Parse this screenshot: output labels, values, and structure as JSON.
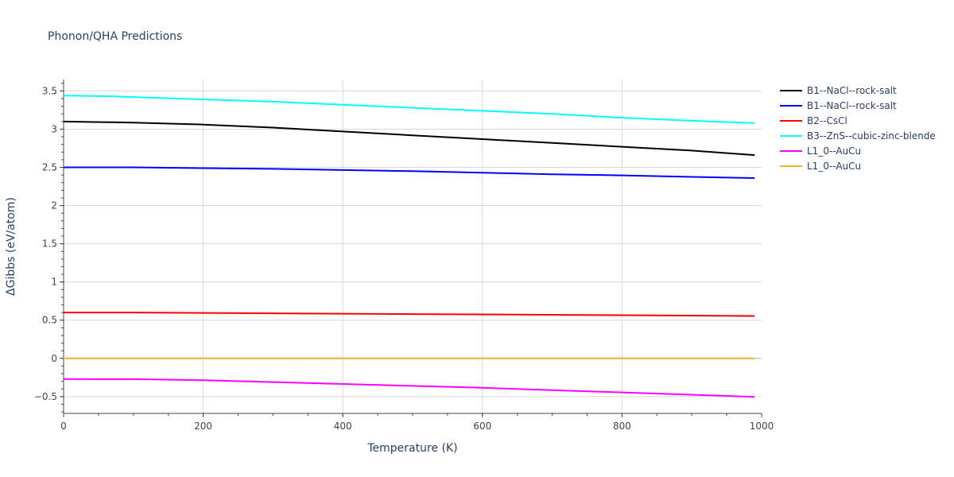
{
  "chart_data": {
    "type": "line",
    "title": "Phonon/QHA Predictions",
    "xlabel": "Temperature (K)",
    "ylabel": "ΔGibbs (eV/atom)",
    "xlim": [
      0,
      1000
    ],
    "ylim": [
      -0.72,
      3.65
    ],
    "xticks": [
      0,
      200,
      400,
      600,
      800,
      1000
    ],
    "xtick_labels": [
      "0",
      "200",
      "400",
      "600",
      "800",
      "1000"
    ],
    "yticks": [
      -0.5,
      0,
      0.5,
      1,
      1.5,
      2,
      2.5,
      3,
      3.5
    ],
    "ytick_labels": [
      "−0.5",
      "0",
      "0.5",
      "1",
      "1.5",
      "2",
      "2.5",
      "3",
      "3.5"
    ],
    "grid": true,
    "legend_position": "right",
    "series": [
      {
        "name": "B1--NaCl--rock-salt",
        "color": "#000000",
        "x": [
          0,
          70,
          100,
          200,
          300,
          400,
          500,
          600,
          700,
          800,
          900,
          990
        ],
        "y": [
          3.1,
          3.09,
          3.085,
          3.06,
          3.02,
          2.97,
          2.92,
          2.87,
          2.82,
          2.77,
          2.72,
          2.66
        ]
      },
      {
        "name": "B1--NaCl--rock-salt",
        "color": "#0000ff",
        "x": [
          0,
          100,
          200,
          300,
          400,
          500,
          600,
          700,
          800,
          900,
          990
        ],
        "y": [
          2.5,
          2.5,
          2.49,
          2.48,
          2.465,
          2.45,
          2.43,
          2.41,
          2.395,
          2.375,
          2.36
        ]
      },
      {
        "name": "B2--CsCl",
        "color": "#ff0000",
        "x": [
          0,
          100,
          200,
          300,
          400,
          500,
          600,
          700,
          800,
          900,
          990
        ],
        "y": [
          0.6,
          0.6,
          0.595,
          0.59,
          0.585,
          0.58,
          0.575,
          0.57,
          0.565,
          0.56,
          0.555
        ]
      },
      {
        "name": "B3--ZnS--cubic-zinc-blende",
        "color": "#00ffff",
        "x": [
          0,
          70,
          100,
          200,
          300,
          400,
          500,
          600,
          700,
          800,
          900,
          990
        ],
        "y": [
          3.44,
          3.43,
          3.42,
          3.39,
          3.36,
          3.32,
          3.28,
          3.24,
          3.2,
          3.15,
          3.11,
          3.08
        ]
      },
      {
        "name": "L1_0--AuCu",
        "color": "#ff00ff",
        "x": [
          0,
          100,
          200,
          300,
          400,
          500,
          600,
          700,
          800,
          900,
          990
        ],
        "y": [
          -0.27,
          -0.272,
          -0.285,
          -0.31,
          -0.335,
          -0.36,
          -0.385,
          -0.415,
          -0.445,
          -0.475,
          -0.505
        ]
      },
      {
        "name": "L1_0--AuCu",
        "color": "#f0b429",
        "x": [
          0,
          100,
          200,
          300,
          400,
          500,
          600,
          700,
          800,
          900,
          990
        ],
        "y": [
          0,
          0,
          0,
          0,
          0,
          0,
          0,
          0,
          0,
          0,
          0
        ]
      }
    ]
  }
}
